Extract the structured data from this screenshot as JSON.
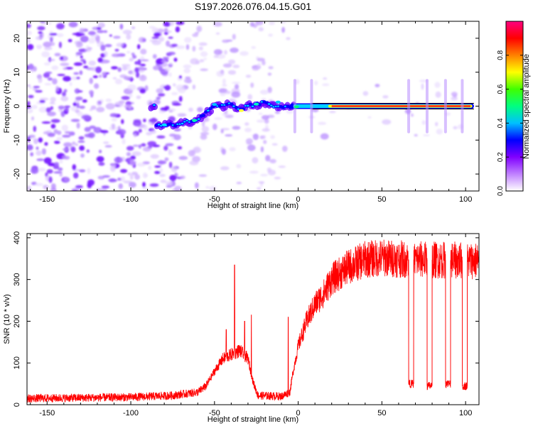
{
  "title": "S197.2026.076.04.15.G01",
  "chart_data": [
    {
      "type": "heatmap",
      "title": "S197.2026.076.04.15.G01",
      "xlabel": "Height of straight line (km)",
      "ylabel": "Frequency (Hz)",
      "xlim": [
        -162,
        108
      ],
      "ylim": [
        -25,
        25
      ],
      "xticks": [
        -150,
        -100,
        -50,
        0,
        50,
        100
      ],
      "yticks": [
        -20,
        -10,
        0,
        10,
        20
      ],
      "colorbar": {
        "label": "Normalized spectral amplitude",
        "range": [
          0,
          1
        ],
        "ticks": [
          "0.0",
          "0.2",
          "0.4",
          "0.6",
          "0.8"
        ],
        "colors": [
          "#ffffff",
          "#c080ff",
          "#8000ff",
          "#0000ff",
          "#00c0ff",
          "#00ff80",
          "#40ff00",
          "#ffff00",
          "#ff8000",
          "#ff0000",
          "#ff0080"
        ]
      },
      "ridge": [
        {
          "x": -85,
          "y": -5.5
        },
        {
          "x": -75,
          "y": -5.5
        },
        {
          "x": -65,
          "y": -4.5
        },
        {
          "x": -60,
          "y": -4
        },
        {
          "x": -55,
          "y": -2
        },
        {
          "x": -50,
          "y": 0
        },
        {
          "x": -45,
          "y": 0
        },
        {
          "x": -40,
          "y": 0.5
        },
        {
          "x": -35,
          "y": -1
        },
        {
          "x": -30,
          "y": 0
        },
        {
          "x": -25,
          "y": 0.5
        },
        {
          "x": -20,
          "y": 1
        },
        {
          "x": -15,
          "y": 0
        },
        {
          "x": -10,
          "y": 0
        },
        {
          "x": 105,
          "y": 0
        }
      ]
    },
    {
      "type": "line",
      "xlabel": "Height of straight line (km)",
      "ylabel": "SNR (10 * v/v)",
      "xlim": [
        -162,
        108
      ],
      "ylim": [
        0,
        410
      ],
      "xticks": [
        -150,
        -100,
        -50,
        0,
        50,
        100
      ],
      "yticks": [
        0,
        100,
        200,
        300,
        400
      ],
      "color": "#ff0000",
      "envelope": [
        {
          "x": -162,
          "y": 15
        },
        {
          "x": -100,
          "y": 18
        },
        {
          "x": -75,
          "y": 22
        },
        {
          "x": -60,
          "y": 30
        },
        {
          "x": -55,
          "y": 45
        },
        {
          "x": -50,
          "y": 80
        },
        {
          "x": -45,
          "y": 110
        },
        {
          "x": -40,
          "y": 120
        },
        {
          "x": -35,
          "y": 130
        },
        {
          "x": -30,
          "y": 110
        },
        {
          "x": -27,
          "y": 55
        },
        {
          "x": -24,
          "y": 22
        },
        {
          "x": -10,
          "y": 20
        },
        {
          "x": -5,
          "y": 30
        },
        {
          "x": -3,
          "y": 80
        },
        {
          "x": 0,
          "y": 140
        },
        {
          "x": 5,
          "y": 200
        },
        {
          "x": 10,
          "y": 240
        },
        {
          "x": 15,
          "y": 265
        },
        {
          "x": 20,
          "y": 300
        },
        {
          "x": 30,
          "y": 330
        },
        {
          "x": 40,
          "y": 348
        },
        {
          "x": 50,
          "y": 352
        },
        {
          "x": 65,
          "y": 348
        },
        {
          "x": 108,
          "y": 345
        }
      ],
      "spikes": [
        {
          "x": -38,
          "y": 335
        },
        {
          "x": -43,
          "y": 180
        },
        {
          "x": -32,
          "y": 200
        },
        {
          "x": -28,
          "y": 215
        },
        {
          "x": -6,
          "y": 210
        }
      ],
      "dropouts": [
        {
          "x0": 66,
          "x1": 69,
          "y": 50
        },
        {
          "x0": 77,
          "x1": 80,
          "y": 45
        },
        {
          "x0": 88,
          "x1": 91,
          "y": 50
        },
        {
          "x0": 98,
          "x1": 101,
          "y": 45
        }
      ]
    }
  ]
}
